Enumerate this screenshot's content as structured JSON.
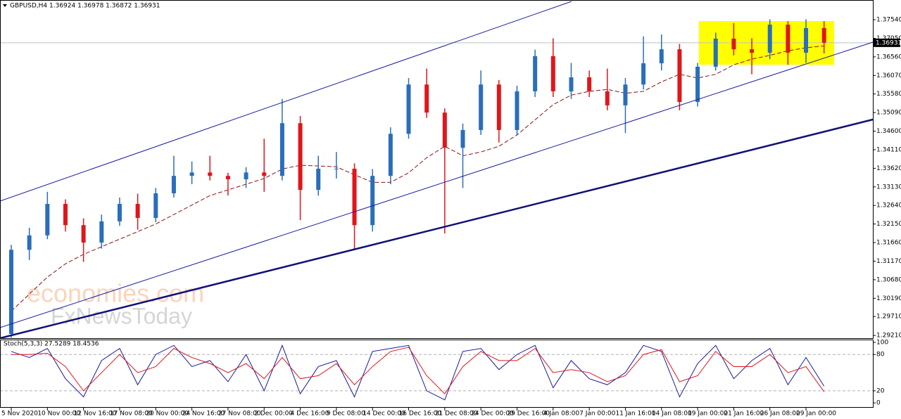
{
  "chart_data": [
    {
      "type": "candlestick",
      "title": "GBPUSD,H4  1.36924 1.36978 1.36872 1.36931",
      "categories": [
        "5 Nov 2020",
        null,
        "10 Nov 00:00",
        null,
        "12 Nov 16:00",
        null,
        "17 Nov 08:00",
        null,
        "20 Nov 00:00",
        null,
        "24 Nov 16:00",
        null,
        "27 Nov 08:00",
        null,
        "2 Dec 00:00",
        null,
        "4 Dec 16:00",
        null,
        "9 Dec 08:00",
        null,
        "14 Dec 00:00",
        null,
        "16 Dec 16:00",
        null,
        "21 Dec 08:00",
        null,
        "24 Dec 00:00",
        null,
        "29 Dec 16:00",
        null,
        "4 Jan 08:00",
        null,
        "7 Jan 00:00",
        null,
        "11 Jan 16:00",
        null,
        "14 Jan 08:00",
        null,
        "19 Jan 00:00",
        null,
        "21 Jan 16:00",
        null,
        "26 Jan 08:00",
        null,
        "29 Jan 00:00",
        null
      ],
      "open": [
        1.2925,
        1.3147,
        1.3185,
        1.3268,
        1.3212,
        1.3166,
        1.3222,
        1.3268,
        1.3231,
        1.3296,
        1.3342,
        1.3351,
        1.3342,
        1.3333,
        1.3351,
        1.3342,
        1.3481,
        1.3305,
        1.3361,
        1.3361,
        1.3212,
        1.3342,
        1.3453,
        1.3583,
        1.3509,
        1.3416,
        1.3463,
        1.3583,
        1.3463,
        1.3565,
        1.3658,
        1.3565,
        1.3602,
        1.3565,
        1.3528,
        1.3583,
        1.3639,
        1.3676,
        1.3537,
        1.363,
        1.3704,
        1.3676,
        1.3667,
        1.3741,
        1.3667,
        1.3732
      ],
      "high": [
        1.316,
        1.3205,
        1.33,
        1.328,
        1.323,
        1.324,
        1.3285,
        1.3295,
        1.331,
        1.3395,
        1.338,
        1.3395,
        1.335,
        1.3365,
        1.344,
        1.3545,
        1.35,
        1.3395,
        1.3405,
        1.3375,
        1.336,
        1.347,
        1.36,
        1.3625,
        1.352,
        1.348,
        1.362,
        1.3595,
        1.358,
        1.3675,
        1.3705,
        1.364,
        1.362,
        1.3625,
        1.36,
        1.371,
        1.3715,
        1.369,
        1.364,
        1.372,
        1.3745,
        1.3705,
        1.3755,
        1.375,
        1.3755,
        1.375
      ],
      "low": [
        1.2915,
        1.312,
        1.3175,
        1.3195,
        1.3115,
        1.315,
        1.321,
        1.32,
        1.322,
        1.3285,
        1.332,
        1.333,
        1.329,
        1.331,
        1.33,
        1.333,
        1.3225,
        1.329,
        1.3335,
        1.315,
        1.3195,
        1.332,
        1.344,
        1.3495,
        1.319,
        1.331,
        1.345,
        1.343,
        1.345,
        1.355,
        1.355,
        1.3545,
        1.355,
        1.3515,
        1.3455,
        1.357,
        1.362,
        1.3515,
        1.3525,
        1.362,
        1.366,
        1.361,
        1.365,
        1.3635,
        1.364,
        1.3665
      ],
      "close": [
        1.3147,
        1.3185,
        1.3268,
        1.3212,
        1.3166,
        1.3222,
        1.3268,
        1.3231,
        1.3296,
        1.3342,
        1.3351,
        1.3342,
        1.3333,
        1.3351,
        1.3342,
        1.3481,
        1.3305,
        1.3361,
        1.3361,
        1.3212,
        1.3342,
        1.3453,
        1.3583,
        1.3509,
        1.3416,
        1.3463,
        1.3583,
        1.3463,
        1.3565,
        1.3658,
        1.3565,
        1.3602,
        1.3565,
        1.3528,
        1.3583,
        1.3639,
        1.3676,
        1.3537,
        1.363,
        1.3704,
        1.3676,
        1.3667,
        1.3741,
        1.3667,
        1.3732,
        1.3693
      ],
      "up_color": "#2a6ebb",
      "down_color": "#e0161b",
      "moving_average": {
        "color": "#8b1010",
        "values": [
          1.2985,
          1.303,
          1.3075,
          1.311,
          1.3135,
          1.3155,
          1.3175,
          1.3195,
          1.3215,
          1.324,
          1.3265,
          1.329,
          1.3305,
          1.332,
          1.3335,
          1.336,
          1.337,
          1.3368,
          1.3366,
          1.3345,
          1.3325,
          1.3325,
          1.335,
          1.339,
          1.342,
          1.3395,
          1.3405,
          1.342,
          1.345,
          1.349,
          1.353,
          1.3555,
          1.3565,
          1.357,
          1.356,
          1.3565,
          1.359,
          1.361,
          1.36,
          1.361,
          1.3635,
          1.365,
          1.366,
          1.3672,
          1.368,
          1.3685
        ]
      },
      "ylim": [
        1.2912,
        1.3806
      ],
      "yticks": [
        {
          "value": 1.3754,
          "label": "1.37540"
        },
        {
          "value": 1.3705,
          "label": "1.37050"
        },
        {
          "value": 1.3656,
          "label": "1.36560"
        },
        {
          "value": 1.3607,
          "label": "1.36070"
        },
        {
          "value": 1.3558,
          "label": "1.35580"
        },
        {
          "value": 1.3509,
          "label": "1.35090"
        },
        {
          "value": 1.346,
          "label": "1.34600"
        },
        {
          "value": 1.3411,
          "label": "1.34110"
        },
        {
          "value": 1.3362,
          "label": "1.33620"
        },
        {
          "value": 1.3313,
          "label": "1.33130"
        },
        {
          "value": 1.3264,
          "label": "1.32640"
        },
        {
          "value": 1.3215,
          "label": "1.32150"
        },
        {
          "value": 1.3166,
          "label": "1.31660"
        },
        {
          "value": 1.3117,
          "label": "1.31170"
        },
        {
          "value": 1.3068,
          "label": "1.30680"
        },
        {
          "value": 1.3019,
          "label": "1.30190"
        },
        {
          "value": 1.2971,
          "label": "1.29710"
        },
        {
          "value": 1.2921,
          "label": "1.29210"
        }
      ],
      "last_price": {
        "value": 1.36931,
        "label": "1.36931"
      },
      "watermark": [
        "economies.com",
        "FxNewsToday"
      ]
    },
    {
      "type": "line",
      "title": "Stoch(5,3,3) 27.5289 18.4536",
      "series": [
        {
          "color": "#1a1aa0",
          "values": [
            85,
            75,
            90,
            40,
            10,
            70,
            90,
            30,
            80,
            95,
            60,
            70,
            35,
            80,
            20,
            95,
            15,
            60,
            70,
            10,
            85,
            90,
            95,
            20,
            5,
            85,
            90,
            55,
            80,
            95,
            25,
            70,
            40,
            30,
            50,
            95,
            85,
            10,
            65,
            95,
            40,
            70,
            90,
            30,
            75,
            27.5289
          ]
        },
        {
          "color": "#e0161b",
          "values": [
            80,
            80,
            82,
            60,
            20,
            50,
            80,
            50,
            60,
            90,
            75,
            65,
            50,
            65,
            40,
            75,
            40,
            45,
            65,
            30,
            60,
            85,
            92,
            45,
            15,
            60,
            85,
            70,
            70,
            90,
            50,
            55,
            50,
            35,
            45,
            80,
            88,
            35,
            45,
            85,
            60,
            60,
            80,
            50,
            60,
            18.4536
          ]
        }
      ],
      "ylim": [
        -8,
        103.5
      ],
      "yticks": [
        100,
        80,
        20,
        0
      ],
      "levels": [
        80,
        20
      ]
    }
  ]
}
